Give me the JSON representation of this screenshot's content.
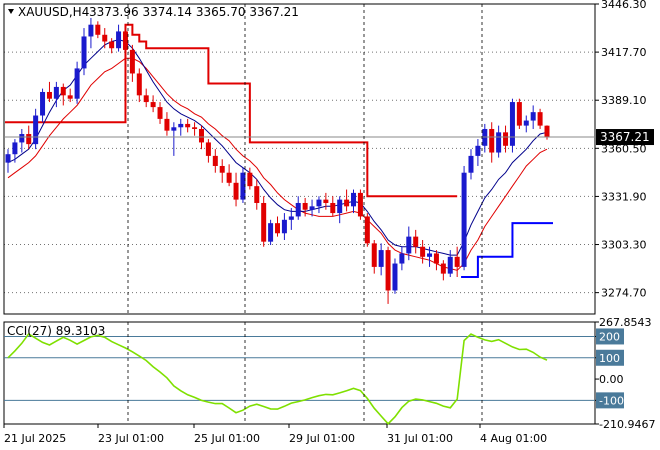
{
  "chart_data": [
    {
      "type": "candlestick",
      "symbol_label": "XAUUSD,H4",
      "ohlc_label": "3373.96 3374.14 3365.70 3367.21",
      "current_price_label": "3367.21",
      "ylim": [
        3262,
        3446.3
      ],
      "y_ticks": [
        "3446.30",
        "3417.70",
        "3389.10",
        "3360.50",
        "3331.90",
        "3303.30",
        "3274.70"
      ],
      "x_ticks": [
        "21 Jul 2025",
        "23 Jul 01:00",
        "25 Jul 01:00",
        "29 Jul 01:00",
        "31 Jul 01:00",
        "4 Aug 01:00"
      ],
      "colors": {
        "up": "#1a1acd",
        "down": "#e00000",
        "ma_fast": "#00008b",
        "ma_slow": "#e00000",
        "trail_red": "#e00000",
        "trail_blue": "#0000ff",
        "grid": "#000000",
        "cci": "#7fe000"
      },
      "candles": [
        [
          3352,
          3360,
          3346,
          3357
        ],
        [
          3357,
          3366,
          3352,
          3364
        ],
        [
          3364,
          3372,
          3358,
          3369
        ],
        [
          3369,
          3374,
          3360,
          3363
        ],
        [
          3363,
          3384,
          3360,
          3380
        ],
        [
          3380,
          3396,
          3376,
          3394
        ],
        [
          3394,
          3400,
          3388,
          3390
        ],
        [
          3390,
          3400,
          3385,
          3397
        ],
        [
          3397,
          3399,
          3386,
          3392
        ],
        [
          3392,
          3396,
          3388,
          3390
        ],
        [
          3390,
          3412,
          3387,
          3408
        ],
        [
          3408,
          3432,
          3404,
          3427
        ],
        [
          3427,
          3438,
          3420,
          3434
        ],
        [
          3434,
          3436,
          3426,
          3428
        ],
        [
          3428,
          3432,
          3420,
          3424
        ],
        [
          3424,
          3426,
          3417,
          3420
        ],
        [
          3420,
          3434,
          3418,
          3430
        ],
        [
          3430,
          3432,
          3416,
          3419
        ],
        [
          3419,
          3422,
          3400,
          3405
        ],
        [
          3405,
          3408,
          3388,
          3392
        ],
        [
          3392,
          3396,
          3385,
          3388
        ],
        [
          3388,
          3392,
          3382,
          3385
        ],
        [
          3385,
          3388,
          3375,
          3378
        ],
        [
          3378,
          3382,
          3368,
          3371
        ],
        [
          3371,
          3376,
          3356,
          3373
        ],
        [
          3373,
          3378,
          3368,
          3375
        ],
        [
          3375,
          3378,
          3370,
          3373
        ],
        [
          3373,
          3376,
          3368,
          3372
        ],
        [
          3372,
          3374,
          3360,
          3364
        ],
        [
          3364,
          3366,
          3352,
          3356
        ],
        [
          3356,
          3360,
          3346,
          3350
        ],
        [
          3350,
          3354,
          3340,
          3346
        ],
        [
          3346,
          3351,
          3338,
          3340
        ],
        [
          3340,
          3346,
          3326,
          3330
        ],
        [
          3330,
          3349,
          3328,
          3346
        ],
        [
          3346,
          3349,
          3336,
          3338
        ],
        [
          3338,
          3342,
          3324,
          3328
        ],
        [
          3328,
          3332,
          3302,
          3305
        ],
        [
          3305,
          3318,
          3303,
          3316
        ],
        [
          3316,
          3320,
          3308,
          3310
        ],
        [
          3310,
          3322,
          3306,
          3318
        ],
        [
          3318,
          3325,
          3312,
          3320
        ],
        [
          3320,
          3332,
          3318,
          3328
        ],
        [
          3328,
          3331,
          3320,
          3324
        ],
        [
          3324,
          3330,
          3320,
          3326
        ],
        [
          3326,
          3332,
          3322,
          3330
        ],
        [
          3330,
          3334,
          3324,
          3328
        ],
        [
          3328,
          3332,
          3320,
          3322
        ],
        [
          3322,
          3332,
          3316,
          3330
        ],
        [
          3330,
          3336,
          3323,
          3326
        ],
        [
          3326,
          3336,
          3322,
          3334
        ],
        [
          3334,
          3336,
          3318,
          3320
        ],
        [
          3320,
          3322,
          3302,
          3304
        ],
        [
          3304,
          3306,
          3286,
          3290
        ],
        [
          3290,
          3304,
          3285,
          3300
        ],
        [
          3300,
          3302,
          3268,
          3276
        ],
        [
          3276,
          3295,
          3274,
          3292
        ],
        [
          3292,
          3302,
          3288,
          3298
        ],
        [
          3298,
          3314,
          3294,
          3308
        ],
        [
          3308,
          3312,
          3298,
          3302
        ],
        [
          3302,
          3306,
          3292,
          3296
        ],
        [
          3296,
          3302,
          3290,
          3298
        ],
        [
          3298,
          3300,
          3288,
          3292
        ],
        [
          3292,
          3294,
          3282,
          3286
        ],
        [
          3286,
          3300,
          3284,
          3296
        ],
        [
          3296,
          3302,
          3284,
          3290
        ],
        [
          3290,
          3350,
          3288,
          3346
        ],
        [
          3346,
          3360,
          3342,
          3356
        ],
        [
          3356,
          3366,
          3350,
          3362
        ],
        [
          3362,
          3375,
          3358,
          3372
        ],
        [
          3372,
          3376,
          3352,
          3358
        ],
        [
          3358,
          3374,
          3355,
          3370
        ],
        [
          3370,
          3374,
          3358,
          3362
        ],
        [
          3362,
          3390,
          3358,
          3388
        ],
        [
          3388,
          3390,
          3372,
          3374
        ],
        [
          3374,
          3380,
          3370,
          3377
        ],
        [
          3377,
          3386,
          3372,
          3382
        ],
        [
          3382,
          3384,
          3372,
          3374
        ],
        [
          3373.96,
          3374.14,
          3365.7,
          3367.21
        ]
      ],
      "ma_fast": [
        3352,
        3354,
        3357,
        3360,
        3366,
        3374,
        3382,
        3389,
        3395,
        3398,
        3404,
        3410,
        3414,
        3418,
        3422,
        3424,
        3425,
        3424,
        3420,
        3414,
        3407,
        3400,
        3394,
        3388,
        3384,
        3381,
        3379,
        3377,
        3374,
        3370,
        3366,
        3362,
        3357,
        3352,
        3349,
        3346,
        3342,
        3336,
        3331,
        3327,
        3324,
        3323,
        3323,
        3323,
        3324,
        3325,
        3326,
        3326,
        3327,
        3328,
        3329,
        3328,
        3323,
        3317,
        3312,
        3306,
        3303,
        3302,
        3302,
        3302,
        3301,
        3300,
        3299,
        3298,
        3297,
        3297,
        3305,
        3315,
        3323,
        3331,
        3336,
        3342,
        3346,
        3352,
        3356,
        3360,
        3365,
        3369,
        3370
      ],
      "ma_slow": [
        3343,
        3346,
        3349,
        3352,
        3356,
        3362,
        3368,
        3373,
        3378,
        3382,
        3386,
        3392,
        3398,
        3402,
        3406,
        3408,
        3411,
        3414,
        3414,
        3412,
        3408,
        3403,
        3398,
        3393,
        3389,
        3386,
        3384,
        3381,
        3379,
        3375,
        3372,
        3368,
        3365,
        3360,
        3356,
        3353,
        3349,
        3343,
        3339,
        3334,
        3330,
        3327,
        3324,
        3322,
        3321,
        3320,
        3320,
        3320,
        3321,
        3322,
        3323,
        3322,
        3318,
        3314,
        3310,
        3304,
        3300,
        3298,
        3297,
        3296,
        3295,
        3294,
        3292,
        3290,
        3289,
        3288,
        3292,
        3300,
        3306,
        3314,
        3320,
        3326,
        3332,
        3338,
        3344,
        3350,
        3354,
        3358,
        3360
      ],
      "trail_red": [
        3376,
        3376,
        3376,
        3376,
        3376,
        3376,
        3376,
        3376,
        3376,
        3376,
        3376,
        3376,
        3376,
        3376,
        3376,
        3376,
        3376,
        3434,
        3428,
        3424,
        3420,
        3420,
        3420,
        3420,
        3420,
        3420,
        3420,
        3420,
        3420,
        3399,
        3399,
        3399,
        3399,
        3399,
        3399,
        3364,
        3364,
        3364,
        3364,
        3364,
        3364,
        3364,
        3364,
        3364,
        3364,
        3364,
        3364,
        3364,
        3364,
        3364,
        3364,
        3364,
        3332,
        3332,
        3332,
        3332,
        3332,
        3332,
        3332,
        3332,
        3332,
        3332,
        3332,
        3332,
        3332,
        3332,
        null,
        null,
        null,
        null,
        null,
        null,
        null,
        null,
        null,
        null,
        null,
        null,
        null
      ],
      "trail_blue": [
        null,
        null,
        null,
        null,
        null,
        null,
        null,
        null,
        null,
        null,
        null,
        null,
        null,
        null,
        null,
        null,
        null,
        null,
        null,
        null,
        null,
        null,
        null,
        null,
        null,
        null,
        null,
        null,
        null,
        null,
        null,
        null,
        null,
        null,
        null,
        null,
        null,
        null,
        null,
        null,
        null,
        null,
        null,
        null,
        null,
        null,
        null,
        null,
        null,
        null,
        null,
        null,
        null,
        null,
        null,
        null,
        null,
        null,
        null,
        null,
        null,
        null,
        null,
        null,
        null,
        null,
        3284,
        3284,
        3296,
        3296,
        3296,
        3296,
        3296,
        3316,
        3316,
        3316,
        3316,
        3316,
        3316
      ]
    },
    {
      "type": "line",
      "title": "CCI(27) 89.3103",
      "ylim": [
        -210.9467,
        267.8543
      ],
      "y_ticks": [
        "267.8543",
        "200",
        "100",
        "0.00",
        "-100",
        "-210.9467"
      ],
      "levels": [
        200,
        100,
        -100
      ],
      "cci": [
        100,
        132,
        168,
        212,
        192,
        172,
        160,
        178,
        196,
        182,
        164,
        181,
        198,
        205,
        196,
        176,
        161,
        146,
        128,
        108,
        87,
        58,
        33,
        6,
        -32,
        -55,
        -74,
        -86,
        -100,
        -108,
        -115,
        -115,
        -136,
        -158,
        -146,
        -127,
        -118,
        -129,
        -140,
        -141,
        -128,
        -113,
        -106,
        -98,
        -87,
        -78,
        -72,
        -74,
        -65,
        -55,
        -44,
        -54,
        -91,
        -137,
        -174,
        -210,
        -177,
        -134,
        -104,
        -94,
        -98,
        -106,
        -114,
        -127,
        -135,
        -94,
        181,
        211,
        196,
        184,
        177,
        185,
        168,
        151,
        139,
        140,
        125,
        103,
        89
      ]
    }
  ]
}
